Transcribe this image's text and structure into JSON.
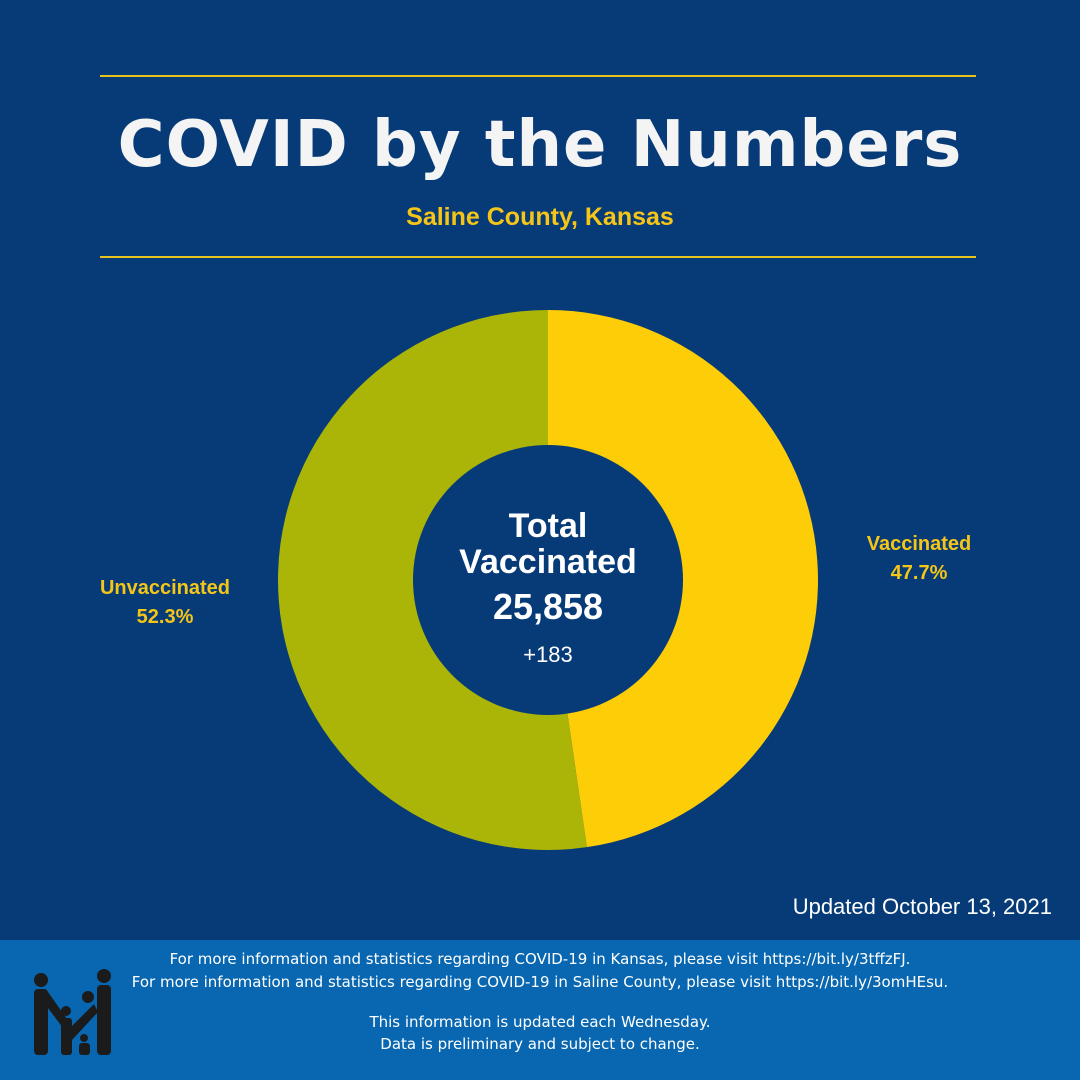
{
  "header": {
    "title": "COVID by the Numbers",
    "subtitle": "Saline County, Kansas"
  },
  "center": {
    "title_line1": "Total",
    "title_line2": "Vaccinated",
    "total": "25,858",
    "change": "+183"
  },
  "chart_data": {
    "type": "pie",
    "subtype": "donut",
    "slices": [
      {
        "label": "Vaccinated",
        "value": 47.7,
        "display": "47.7%",
        "color": "#fdcd07"
      },
      {
        "label": "Unvaccinated",
        "value": 52.3,
        "display": "52.3%",
        "color": "#abb508"
      }
    ]
  },
  "updated": "Updated October 13, 2021",
  "footer": {
    "line1": "For more information and statistics regarding COVID-19 in Kansas, please visit https://bit.ly/3tffzFJ.",
    "line2": "For more information and statistics regarding COVID-19 in Saline County, please visit  https://bit.ly/3omHEsu.",
    "line3": "This information is updated each Wednesday.",
    "line4": "Data is preliminary and subject to change.",
    "logo_icon": "family-logo-icon"
  }
}
